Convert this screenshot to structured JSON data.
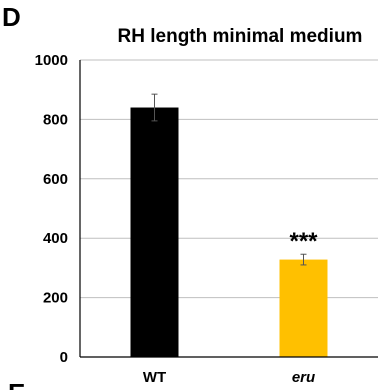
{
  "panel_label": "D",
  "next_panel_label": "E",
  "chart_data": {
    "type": "bar",
    "title": "RH length minimal medium",
    "xlabel": "",
    "ylabel": "",
    "ylim": [
      0,
      1000
    ],
    "yticks": [
      0,
      200,
      400,
      600,
      800,
      1000
    ],
    "grid": true,
    "categories": [
      "WT",
      "eru"
    ],
    "values": [
      840,
      328
    ],
    "errors": [
      45,
      18
    ],
    "colors": [
      "#000000",
      "#FFC000"
    ],
    "annotations": [
      {
        "category": "eru",
        "text": "***"
      }
    ]
  }
}
